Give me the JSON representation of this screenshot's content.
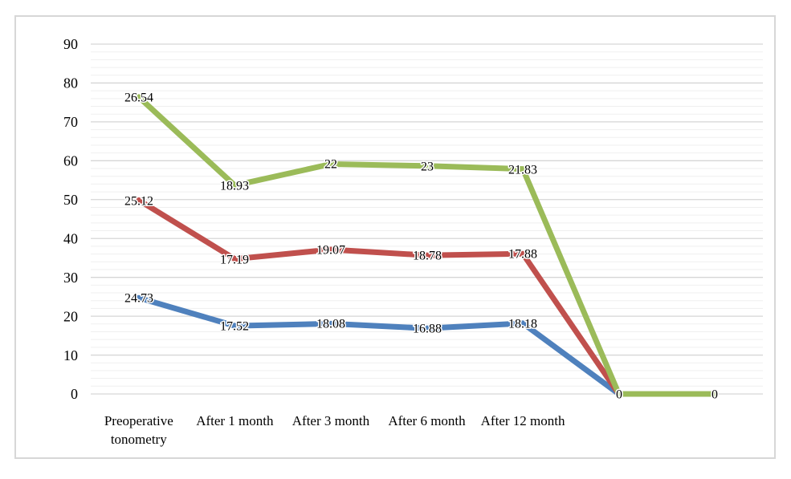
{
  "chart_data": {
    "type": "line",
    "stacked": true,
    "title": "",
    "legend": "none",
    "categories": [
      "Preoperative\ntonometry",
      "After 1 month",
      "After 3 month",
      "After 6 month",
      "After 12 month",
      "",
      ""
    ],
    "series": [
      {
        "name": "series-blue",
        "color": "#4F81BD",
        "values": [
          24.73,
          17.52,
          18.08,
          16.88,
          18.18,
          0,
          0
        ]
      },
      {
        "name": "series-red",
        "color": "#C0504D",
        "values": [
          25.12,
          17.19,
          19.07,
          18.78,
          17.88,
          0,
          0
        ]
      },
      {
        "name": "series-green",
        "color": "#9BBB59",
        "values": [
          26.54,
          18.93,
          22,
          23,
          21.83,
          0,
          0
        ]
      }
    ],
    "data_labels": true,
    "data_label_position": "center",
    "xlabel": "",
    "ylabel": "",
    "ylim": [
      0,
      90
    ],
    "ytick_step": 10,
    "yminor_step": 2,
    "yticks": [
      "0",
      "10",
      "20",
      "30",
      "40",
      "50",
      "60",
      "70",
      "80",
      "90"
    ],
    "grid": {
      "major": true,
      "minor": true
    },
    "colors": {
      "major_grid": "#D6D6D6",
      "minor_grid": "#EFEFEF",
      "chart_border": "#D7D7D7",
      "text": "#000000",
      "background": "#FFFFFF"
    }
  }
}
